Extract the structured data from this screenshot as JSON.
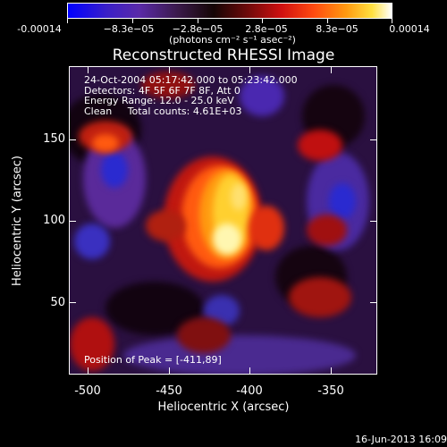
{
  "colorbar": {
    "ticks": [
      "-0.00014",
      "−8.3e−05",
      "−2.8e−05",
      "2.8e−05",
      "8.3e−05",
      "0.00014"
    ],
    "units": "(photons cm⁻² s⁻¹ asec⁻²)",
    "colors": [
      "#0000ff",
      "#5a2aa8",
      "#150505",
      "#d01010",
      "#ff9a10",
      "#ffffff"
    ]
  },
  "plot_title": "Reconstructed RHESSI Image",
  "info": {
    "line1": "24-Oct-2004 05:17:42.000 to 05:23:42.000",
    "line2": "Detectors: 4F 5F 6F 7F 8F, Att 0",
    "line3": "Energy Range: 12.0 - 25.0 keV",
    "line4": "Clean     Total counts: 4.61E+03"
  },
  "peak_text": "Position of Peak = [-411,89]",
  "x_axis": {
    "label": "Heliocentric X (arcsec)",
    "ticks": [
      "-500",
      "-450",
      "-400",
      "-350"
    ]
  },
  "y_axis": {
    "label": "Heliocentric Y (arcsec)",
    "ticks": [
      "150",
      "100",
      "50"
    ]
  },
  "footer_date": "16-Jun-2013 16:09"
}
